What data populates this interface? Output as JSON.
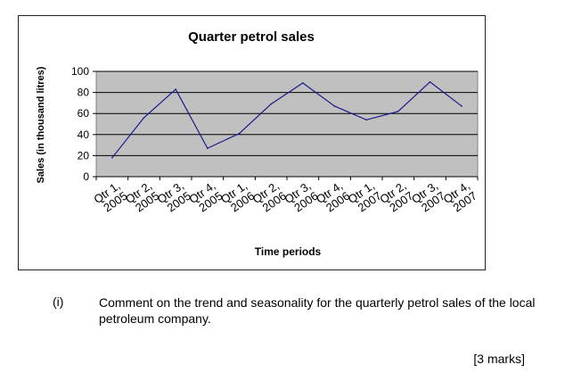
{
  "chart_data": {
    "type": "line",
    "title": "Quarter petrol sales",
    "xlabel": "Time periods",
    "ylabel": "Sales (in thousand litres)",
    "categories": [
      [
        "Qtr 1,",
        "2005"
      ],
      [
        "Qtr 2,",
        "2005"
      ],
      [
        "Qtr 3,",
        "2005"
      ],
      [
        "Qtr 4,",
        "2005"
      ],
      [
        "Qtr 1,",
        "2006"
      ],
      [
        "Qtr 2,",
        "2006"
      ],
      [
        "Qtr 3,",
        "2006"
      ],
      [
        "Qtr 4,",
        "2006"
      ],
      [
        "Qtr 1,",
        "2007"
      ],
      [
        "Qtr 2,",
        "2007"
      ],
      [
        "Qtr 3,",
        "2007"
      ],
      [
        "Qtr 4,",
        "2007"
      ]
    ],
    "values": [
      18,
      56,
      83,
      27,
      41,
      69,
      89,
      67,
      54,
      62,
      90,
      67
    ],
    "ylim": [
      0,
      100
    ],
    "yticks": [
      "0",
      "20",
      "40",
      "60",
      "80",
      "100"
    ],
    "grid": true,
    "line_color": "#1a1a8c",
    "plot_background": "#c0c0c0"
  },
  "question": {
    "number": "(i)",
    "text": "Comment on the trend and seasonality for the quarterly petrol sales of the local petroleum company.",
    "marks": "[3 marks]"
  }
}
